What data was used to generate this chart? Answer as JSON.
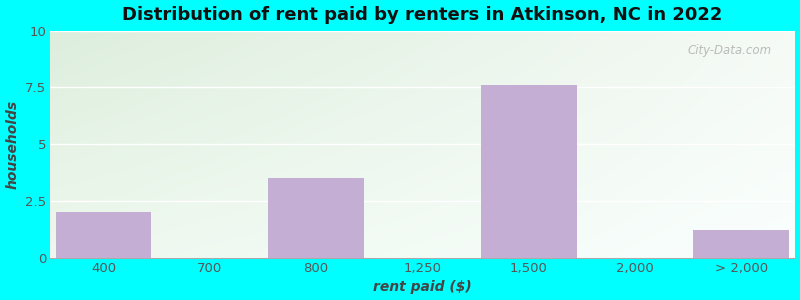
{
  "title": "Distribution of rent paid by renters in Atkinson, NC in 2022",
  "xlabel": "rent paid ($)",
  "ylabel": "households",
  "categories": [
    "400",
    "700",
    "800",
    "1,250",
    "1,500",
    "2,000",
    "> 2,000"
  ],
  "values": [
    2.0,
    0,
    3.5,
    0,
    7.6,
    0,
    1.2
  ],
  "bar_color": "#c4aed4",
  "ylim": [
    0,
    10
  ],
  "yticks": [
    0,
    2.5,
    5,
    7.5,
    10
  ],
  "background_outer": "#00FFFF",
  "background_plot_top_left": "#ddeedd",
  "background_plot_top_right": "#f5faf5",
  "background_plot_bottom_left": "#eef5ee",
  "background_plot_bottom_right": "#fafffe",
  "grid_color": "#ffffff",
  "title_fontsize": 13,
  "axis_label_fontsize": 10,
  "tick_fontsize": 9.5,
  "watermark": "City-Data.com"
}
